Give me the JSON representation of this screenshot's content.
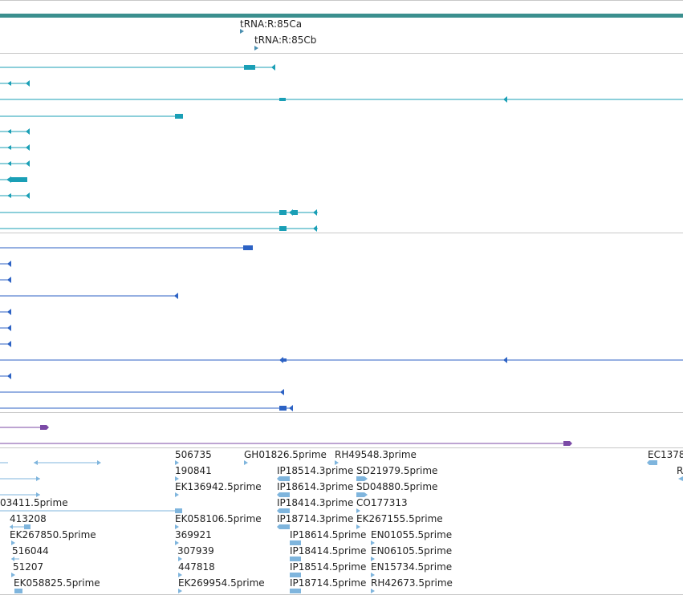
{
  "colors": {
    "top_bar": "#3b8f8e",
    "trna": "#4a8fb0",
    "transcript_teal": "#1a9fb6",
    "transcript_blue": "#2c62c4",
    "purple": "#7b4aa6",
    "est": "#7fb5dd",
    "separator": "#c8c8c8"
  },
  "trna_track": {
    "labels": [
      "tRNA:R:85Ca",
      "tRNA:R:85Cb"
    ]
  },
  "est_track": {
    "labels": [
      "506735",
      "GH01826.5prime",
      "RH49548.3prime",
      "EC1378",
      "190841",
      "IP18514.3prime",
      "SD21979.5prime",
      "R",
      "EK136942.5prime",
      "IP18614.3prime",
      "SD04880.5prime",
      "03411.5prime",
      "IP18414.3prime",
      "CO177313",
      "413208",
      "EK058106.5prime",
      "IP18714.3prime",
      "EK267155.5prime",
      "EK267850.5prime",
      "369921",
      "IP18614.5prime",
      "EN01055.5prime",
      "516044",
      "307939",
      "IP18414.5prime",
      "EN06105.5prime",
      "51207",
      "447818",
      "IP18514.5prime",
      "EN15734.5prime",
      "EK058825.5prime",
      "EK269954.5prime",
      "IP18714.5prime",
      "RH42673.5prime"
    ]
  }
}
